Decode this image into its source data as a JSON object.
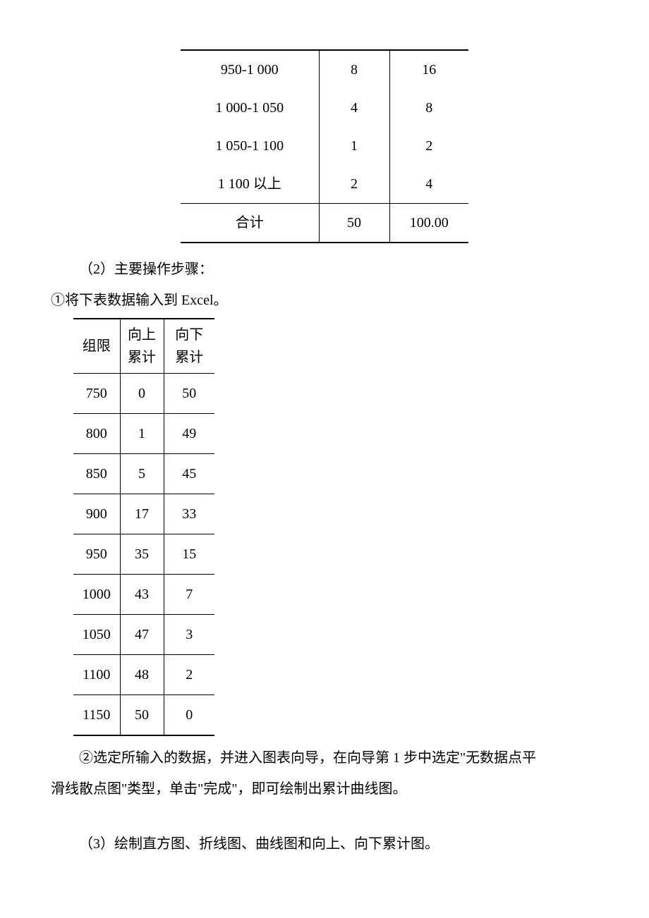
{
  "table1": {
    "rows": [
      {
        "range": "950-1 000",
        "count": "8",
        "pct": "16"
      },
      {
        "range": "1 000-1 050",
        "count": "4",
        "pct": "8"
      },
      {
        "range": "1 050-1 100",
        "count": "1",
        "pct": "2"
      },
      {
        "range": "1 100 以上",
        "count": "2",
        "pct": "4"
      }
    ],
    "total": {
      "label": "合计",
      "count": "50",
      "pct": "100.00"
    }
  },
  "para1": "（2）主要操作步骤：",
  "para2": "①将下表数据输入到 Excel。",
  "table2": {
    "headers": {
      "c0": "组限",
      "c1a": "向上",
      "c1b": "累计",
      "c2a": "向下",
      "c2b": "累计"
    },
    "rows": [
      {
        "limit": "750",
        "up": "0",
        "down": "50"
      },
      {
        "limit": "800",
        "up": "1",
        "down": "49"
      },
      {
        "limit": "850",
        "up": "5",
        "down": "45"
      },
      {
        "limit": "900",
        "up": "17",
        "down": "33"
      },
      {
        "limit": "950",
        "up": "35",
        "down": "15"
      },
      {
        "limit": "1000",
        "up": "43",
        "down": "7"
      },
      {
        "limit": "1050",
        "up": "47",
        "down": "3"
      },
      {
        "limit": "1100",
        "up": "48",
        "down": "2"
      },
      {
        "limit": "1150",
        "up": "50",
        "down": "0"
      }
    ]
  },
  "para3a": "②选定所输入的数据，并进入图表向导，在向导第 1 步中选定\"无数据点平",
  "para3b": "滑线散点图\"类型，单击\"完成\"，即可绘制出累计曲线图。",
  "para4": "（3）绘制直方图、折线图、曲线图和向上、向下累计图。"
}
